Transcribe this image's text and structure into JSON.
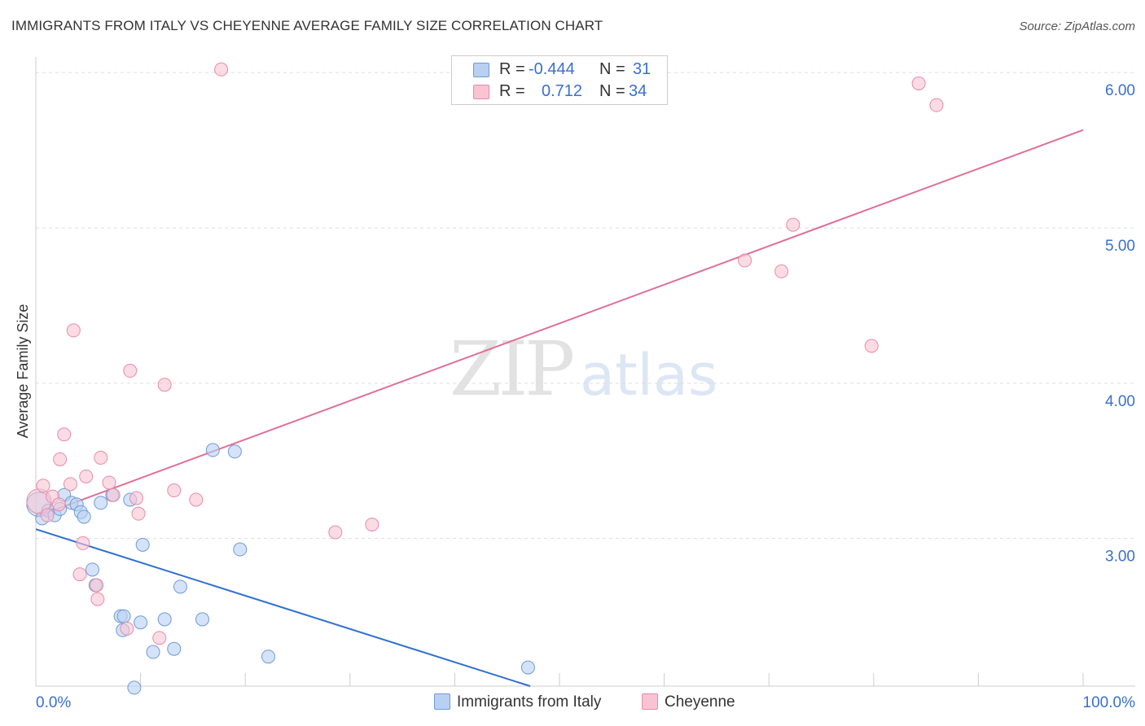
{
  "header": {
    "title": "IMMIGRANTS FROM ITALY VS CHEYENNE AVERAGE FAMILY SIZE CORRELATION CHART",
    "source": "Source: ZipAtlas.com"
  },
  "watermark": {
    "part1": "ZIP",
    "part2": "atlas"
  },
  "legend": {
    "series1": {
      "r_label": "R =",
      "r_value": "-0.444",
      "n_label": "N =",
      "n_value": "31"
    },
    "series2": {
      "r_label": "R =",
      "r_value": "0.712",
      "n_label": "N =",
      "n_value": "34"
    }
  },
  "bottom_legend": {
    "series1": "Immigrants from Italy",
    "series2": "Cheyenne"
  },
  "colors": {
    "series1_fill": "#b8d0f2",
    "series1_stroke": "#6f9ad8",
    "series1_line": "#2f6fd0",
    "series2_fill": "#f8c4d4",
    "series2_stroke": "#e88aa8",
    "series2_line": "#e07098",
    "tick_label": "#3a6fd0",
    "grid": "#dddddd"
  },
  "chart_data": {
    "type": "scatter",
    "title": "IMMIGRANTS FROM ITALY VS CHEYENNE AVERAGE FAMILY SIZE CORRELATION CHART",
    "xlabel": "",
    "ylabel": "Average Family Size",
    "xlim": [
      0,
      100
    ],
    "ylim": [
      2.05,
      6.1
    ],
    "x_tick_labels": [
      "0.0%",
      "100.0%"
    ],
    "y_ticks": [
      3.0,
      4.0,
      5.0,
      6.0
    ],
    "y_tick_labels": [
      "3.00",
      "4.00",
      "5.00",
      "6.00"
    ],
    "grid": "horizontal dashed",
    "legend_position": "top-center",
    "series": [
      {
        "name": "Immigrants from Italy",
        "r": -0.444,
        "n": 31,
        "trend": {
          "x": [
            0,
            47.2
          ],
          "y": [
            3.06,
            2.05
          ]
        },
        "points": [
          {
            "x": 0.3,
            "y": 3.22,
            "big": true
          },
          {
            "x": 0.6,
            "y": 3.13
          },
          {
            "x": 1.2,
            "y": 3.18
          },
          {
            "x": 1.8,
            "y": 3.15
          },
          {
            "x": 2.3,
            "y": 3.19
          },
          {
            "x": 2.7,
            "y": 3.28
          },
          {
            "x": 3.4,
            "y": 3.23
          },
          {
            "x": 3.9,
            "y": 3.22
          },
          {
            "x": 4.3,
            "y": 3.17
          },
          {
            "x": 4.6,
            "y": 3.14
          },
          {
            "x": 5.4,
            "y": 2.8
          },
          {
            "x": 5.7,
            "y": 2.7
          },
          {
            "x": 7.3,
            "y": 3.28
          },
          {
            "x": 6.2,
            "y": 3.23
          },
          {
            "x": 8.3,
            "y": 2.41
          },
          {
            "x": 8.1,
            "y": 2.5
          },
          {
            "x": 8.4,
            "y": 2.5
          },
          {
            "x": 9.0,
            "y": 3.25
          },
          {
            "x": 10.0,
            "y": 2.46
          },
          {
            "x": 10.2,
            "y": 2.96
          },
          {
            "x": 11.2,
            "y": 2.27
          },
          {
            "x": 12.3,
            "y": 2.48
          },
          {
            "x": 13.2,
            "y": 2.29
          },
          {
            "x": 13.8,
            "y": 2.69
          },
          {
            "x": 15.9,
            "y": 2.48
          },
          {
            "x": 16.9,
            "y": 3.57
          },
          {
            "x": 19.0,
            "y": 3.56
          },
          {
            "x": 19.5,
            "y": 2.93
          },
          {
            "x": 22.2,
            "y": 2.24
          },
          {
            "x": 47.0,
            "y": 2.17
          },
          {
            "x": 9.4,
            "y": 2.04
          }
        ]
      },
      {
        "name": "Cheyenne",
        "r": 0.712,
        "n": 34,
        "trend": {
          "x": [
            0,
            100
          ],
          "y": [
            3.14,
            5.63
          ]
        },
        "points": [
          {
            "x": 0.3,
            "y": 3.24,
            "big": true
          },
          {
            "x": 0.7,
            "y": 3.34
          },
          {
            "x": 1.1,
            "y": 3.15
          },
          {
            "x": 1.6,
            "y": 3.27
          },
          {
            "x": 2.2,
            "y": 3.22
          },
          {
            "x": 2.3,
            "y": 3.51
          },
          {
            "x": 2.7,
            "y": 3.67
          },
          {
            "x": 3.3,
            "y": 3.35
          },
          {
            "x": 3.6,
            "y": 4.34
          },
          {
            "x": 4.2,
            "y": 2.77
          },
          {
            "x": 4.5,
            "y": 2.97
          },
          {
            "x": 4.8,
            "y": 3.4
          },
          {
            "x": 5.8,
            "y": 2.7
          },
          {
            "x": 5.9,
            "y": 2.61
          },
          {
            "x": 6.2,
            "y": 3.52
          },
          {
            "x": 7.0,
            "y": 3.36
          },
          {
            "x": 7.4,
            "y": 3.28
          },
          {
            "x": 8.7,
            "y": 2.42
          },
          {
            "x": 9.0,
            "y": 4.08
          },
          {
            "x": 9.6,
            "y": 3.26
          },
          {
            "x": 9.8,
            "y": 3.16
          },
          {
            "x": 11.8,
            "y": 2.36
          },
          {
            "x": 12.3,
            "y": 3.99
          },
          {
            "x": 13.2,
            "y": 3.31
          },
          {
            "x": 15.3,
            "y": 3.25
          },
          {
            "x": 17.7,
            "y": 6.02
          },
          {
            "x": 28.6,
            "y": 3.04
          },
          {
            "x": 32.1,
            "y": 3.09
          },
          {
            "x": 67.7,
            "y": 4.79
          },
          {
            "x": 71.2,
            "y": 4.72
          },
          {
            "x": 72.3,
            "y": 5.02
          },
          {
            "x": 79.8,
            "y": 4.24
          },
          {
            "x": 84.3,
            "y": 5.93
          },
          {
            "x": 86.0,
            "y": 5.79
          }
        ]
      }
    ]
  }
}
